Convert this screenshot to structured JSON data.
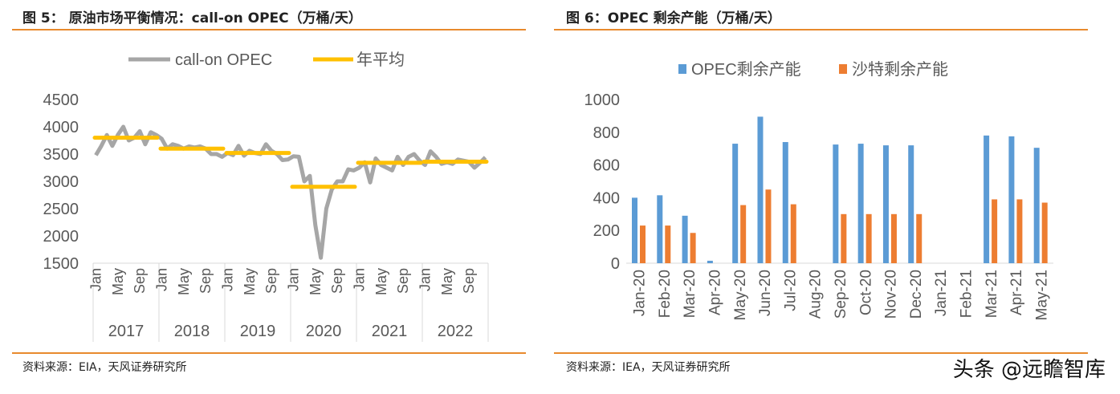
{
  "panels": {
    "left": {
      "title": "图 5： 原油市场平衡情况：call-on OPEC（万桶/天）",
      "source": "资料来源：EIA，天风证券研究所"
    },
    "right": {
      "title": "图 6：OPEC 剩余产能（万桶/天）",
      "source": "资料来源：IEA，天风证券研究所"
    }
  },
  "watermark": "头条 @远瞻智库",
  "chart_data": [
    {
      "type": "line",
      "ylim": [
        1500,
        4500
      ],
      "yticks": [
        1500,
        2000,
        2500,
        3000,
        3500,
        4000,
        4500
      ],
      "years": [
        "2017",
        "2018",
        "2019",
        "2020",
        "2021",
        "2022"
      ],
      "month_ticks": [
        "Jan",
        "May",
        "Sep"
      ],
      "series": [
        {
          "name": "call-on OPEC",
          "color": "#a6a6a6",
          "values": [
            3480,
            3650,
            3850,
            3650,
            3850,
            4000,
            3750,
            3800,
            3920,
            3680,
            3900,
            3850,
            3780,
            3600,
            3680,
            3650,
            3600,
            3640,
            3620,
            3640,
            3600,
            3500,
            3500,
            3450,
            3520,
            3480,
            3650,
            3470,
            3560,
            3520,
            3500,
            3680,
            3560,
            3500,
            3390,
            3400,
            3460,
            3450,
            3000,
            3100,
            2200,
            1600,
            2500,
            2850,
            3000,
            3000,
            3220,
            3200,
            3250,
            3350,
            2980,
            3420,
            3300,
            3250,
            3200,
            3450,
            3300,
            3450,
            3500,
            3380,
            3300,
            3550,
            3450,
            3320,
            3350,
            3320,
            3400,
            3380,
            3360,
            3250,
            3340,
            3440
          ]
        },
        {
          "name": "年平均",
          "color": "#ffc000",
          "values": [
            3800,
            3600,
            3520,
            2900,
            3340,
            3360
          ]
        }
      ]
    },
    {
      "type": "bar",
      "ylim": [
        0,
        1000
      ],
      "yticks": [
        0,
        200,
        400,
        600,
        800,
        1000
      ],
      "categories": [
        "Jan-20",
        "Feb-20",
        "Mar-20",
        "Apr-20",
        "May-20",
        "Jun-20",
        "Jul-20",
        "Aug-20",
        "Sep-20",
        "Oct-20",
        "Nov-20",
        "Dec-20",
        "Jan-21",
        "Feb-21",
        "Mar-21",
        "Apr-21",
        "May-21"
      ],
      "series": [
        {
          "name": "OPEC剩余产能",
          "color": "#5b9bd5",
          "values": [
            400,
            415,
            290,
            15,
            730,
            895,
            740,
            0,
            725,
            730,
            720,
            720,
            0,
            0,
            780,
            775,
            705
          ]
        },
        {
          "name": "沙特剩余产能",
          "color": "#ed7d31",
          "values": [
            230,
            230,
            185,
            0,
            355,
            450,
            360,
            0,
            300,
            300,
            300,
            300,
            0,
            0,
            390,
            390,
            370
          ]
        }
      ]
    }
  ]
}
